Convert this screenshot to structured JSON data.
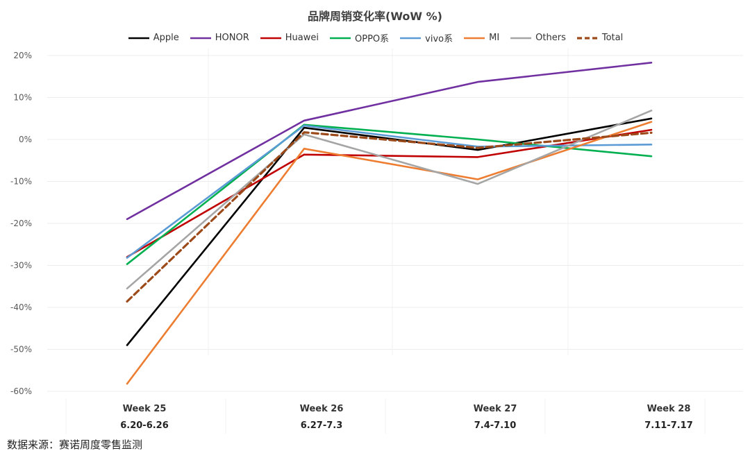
{
  "chart_data": {
    "type": "line",
    "title": "品牌周销变化率(WoW %)",
    "xlabel": "",
    "ylabel": "",
    "ylim": [
      -60,
      20
    ],
    "y_ticks": [
      20,
      10,
      0,
      -10,
      -20,
      -30,
      -40,
      -50,
      -60
    ],
    "y_tick_labels": [
      "20%",
      "10%",
      "0%",
      "-10%",
      "-20%",
      "-30%",
      "-40%",
      "-50%",
      "-60%"
    ],
    "categories": [
      "Week 25",
      "Week 26",
      "Week 27",
      "Week 28"
    ],
    "category_sublabels": [
      "6.20-6.26",
      "6.27-7.3",
      "7.4-7.10",
      "7.11-7.17"
    ],
    "grid": true,
    "legend_position": "top",
    "series": [
      {
        "name": "Apple",
        "color": "#000000",
        "dashed": false,
        "values": [
          -49,
          2.8,
          -2.5,
          5
        ]
      },
      {
        "name": "HONOR",
        "color": "#7030A0",
        "dashed": false,
        "values": [
          -19,
          4.5,
          13.7,
          18.3
        ]
      },
      {
        "name": "Huawei",
        "color": "#C00000",
        "dashed": false,
        "values": [
          -28,
          -3.6,
          -4.2,
          2.3
        ]
      },
      {
        "name": "OPPO系",
        "color": "#00B050",
        "dashed": false,
        "values": [
          -29.7,
          3.5,
          0,
          -4
        ]
      },
      {
        "name": "vivo系",
        "color": "#5B9BD5",
        "dashed": false,
        "values": [
          -28.2,
          3.3,
          -1.7,
          -1.2
        ]
      },
      {
        "name": "MI",
        "color": "#ED7D31",
        "dashed": false,
        "values": [
          -58.2,
          -2.2,
          -9.5,
          4.2
        ]
      },
      {
        "name": "Others",
        "color": "#A5A5A5",
        "dashed": false,
        "values": [
          -35.5,
          1.2,
          -10.6,
          6.9
        ]
      },
      {
        "name": "Total",
        "color": "#9C4A1A",
        "dashed": true,
        "values": [
          -38.6,
          1.7,
          -2,
          1.6
        ]
      }
    ]
  },
  "source_note": "数据来源：赛诺周度零售监测"
}
